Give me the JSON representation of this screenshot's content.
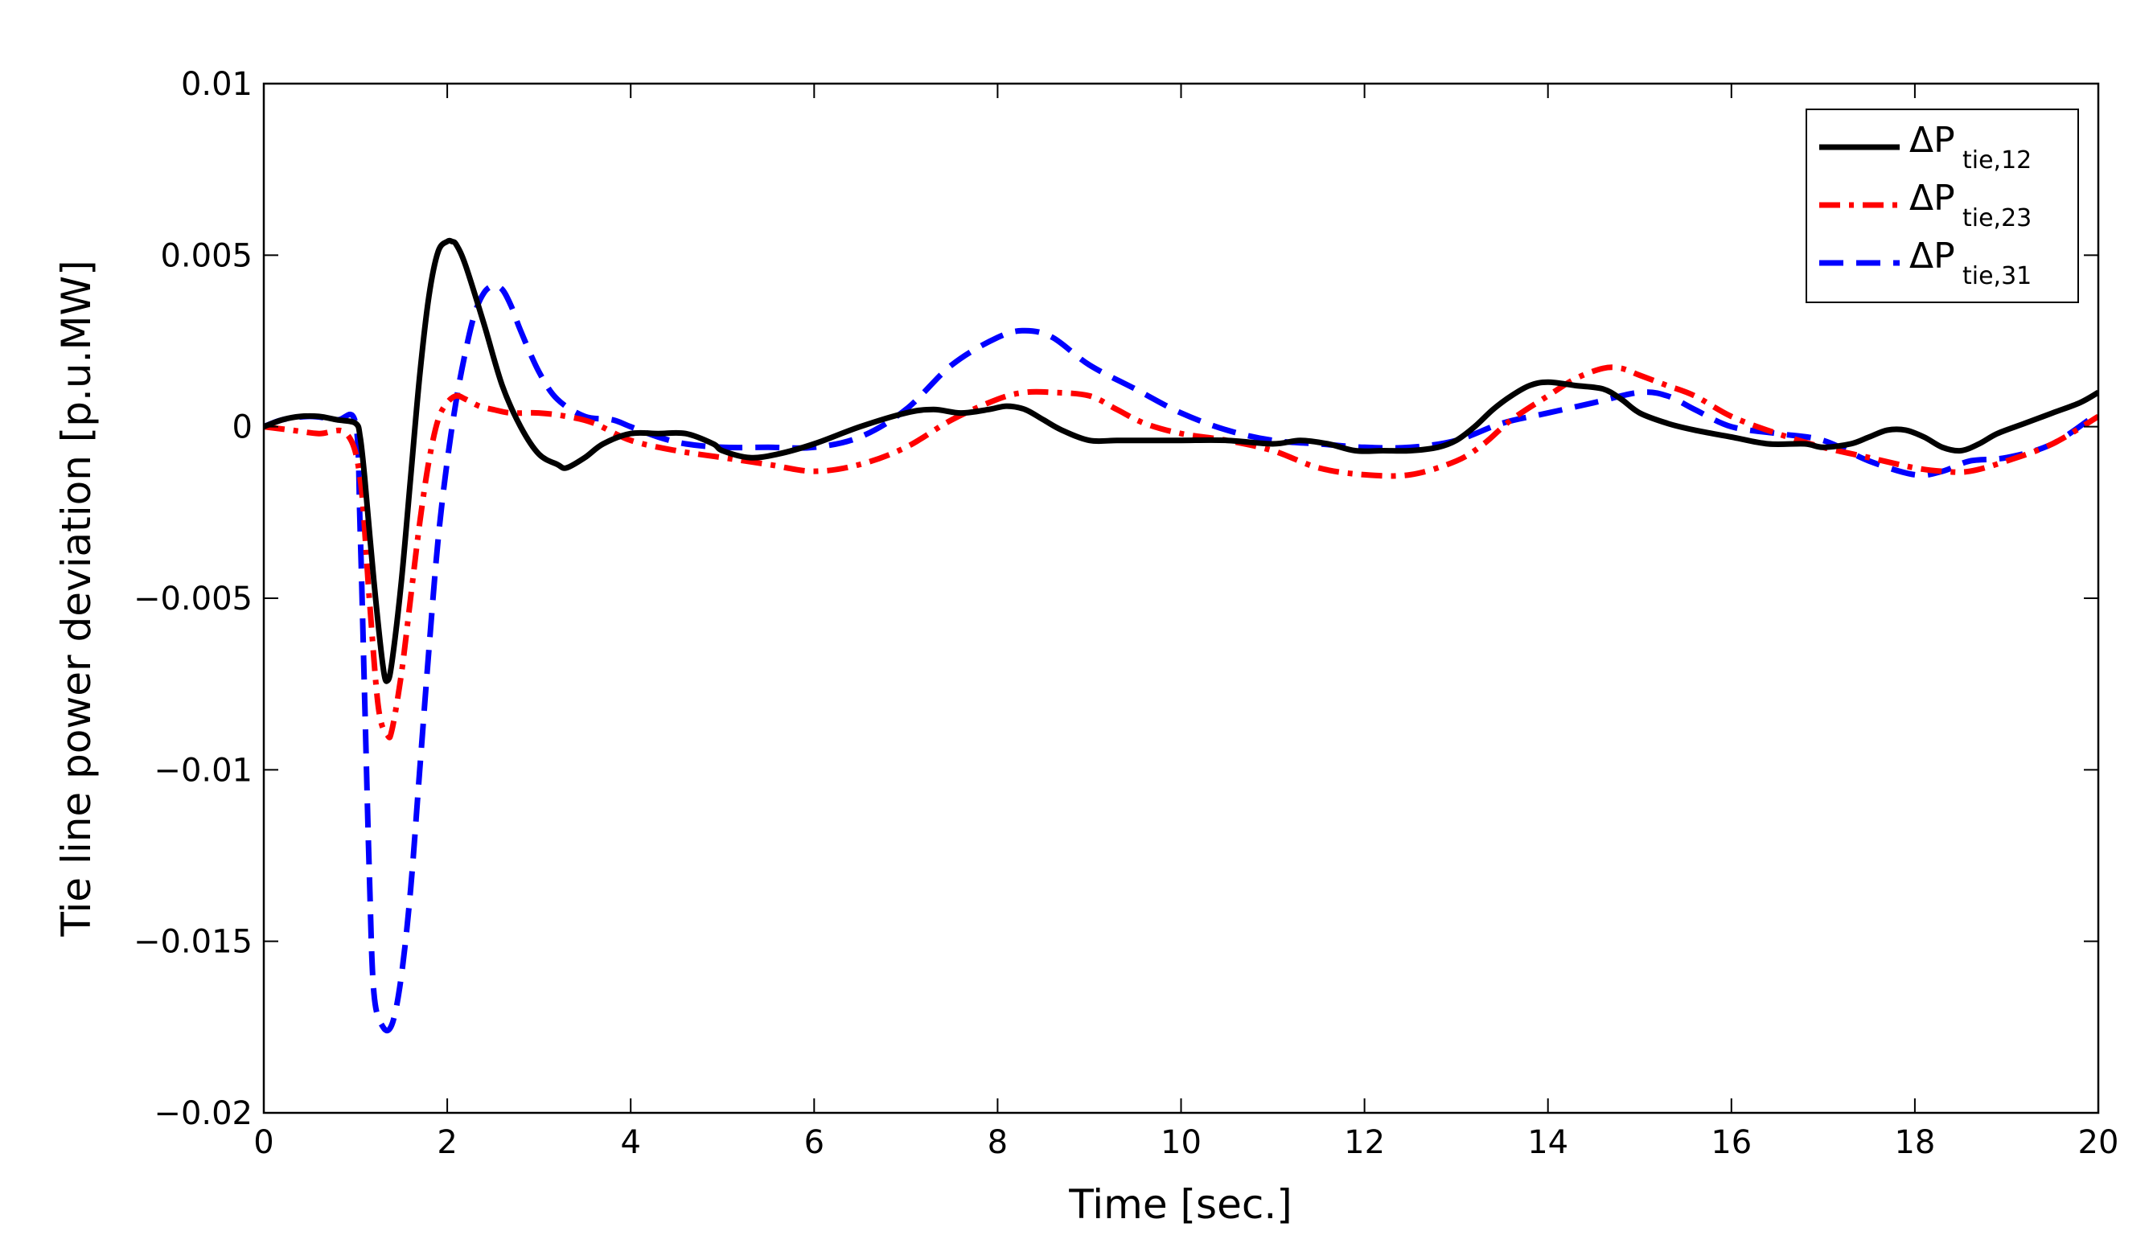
{
  "chart_data": {
    "type": "line",
    "title": "",
    "xlabel": "Time [sec.]",
    "ylabel": "Tie line power deviation [p.u.MW]",
    "xlim": [
      0,
      20
    ],
    "ylim": [
      -0.02,
      0.01
    ],
    "xticks": [
      0,
      2,
      4,
      6,
      8,
      10,
      12,
      14,
      16,
      18,
      20
    ],
    "xtick_labels": [
      "0",
      "2",
      "4",
      "6",
      "8",
      "10",
      "12",
      "14",
      "16",
      "18",
      "20"
    ],
    "yticks": [
      0.01,
      0.005,
      0,
      -0.005,
      -0.01,
      -0.015,
      -0.02
    ],
    "ytick_labels": [
      "0.01",
      "0.005",
      "0",
      "−0.005",
      "−0.01",
      "−0.015",
      "−0.02"
    ],
    "grid": false,
    "legend_position": "top-right",
    "series": [
      {
        "name": "ΔP_tie,12",
        "legend_main": "ΔP",
        "legend_sub": "tie,12",
        "color": "#000000",
        "style": "solid",
        "x": [
          0,
          0.2,
          0.4,
          0.6,
          0.8,
          1.0,
          1.05,
          1.1,
          1.2,
          1.3,
          1.35,
          1.4,
          1.5,
          1.6,
          1.7,
          1.8,
          1.9,
          2.0,
          2.05,
          2.1,
          2.2,
          2.4,
          2.6,
          2.8,
          3.0,
          3.2,
          3.3,
          3.5,
          3.7,
          4.0,
          4.3,
          4.6,
          4.9,
          5.0,
          5.3,
          5.6,
          6.0,
          6.5,
          7.0,
          7.3,
          7.6,
          7.9,
          8.1,
          8.3,
          8.5,
          8.7,
          9.0,
          9.3,
          9.6,
          10.0,
          10.5,
          11.0,
          11.3,
          11.6,
          11.9,
          12.2,
          12.5,
          12.8,
          13.0,
          13.2,
          13.4,
          13.6,
          13.8,
          14.0,
          14.3,
          14.6,
          14.8,
          15.0,
          15.3,
          15.6,
          16.0,
          16.4,
          16.8,
          17.0,
          17.3,
          17.5,
          17.7,
          17.9,
          18.1,
          18.3,
          18.5,
          18.7,
          18.9,
          19.2,
          19.5,
          19.8,
          20.0
        ],
        "y": [
          0,
          0.0002,
          0.0003,
          0.0003,
          0.0002,
          0.0001,
          -0.0003,
          -0.0015,
          -0.0045,
          -0.007,
          -0.0074,
          -0.0068,
          -0.0045,
          -0.0015,
          0.0015,
          0.0038,
          0.0051,
          0.0054,
          0.0054,
          0.0053,
          0.0047,
          0.003,
          0.0012,
          0.0,
          -0.0008,
          -0.0011,
          -0.0012,
          -0.0009,
          -0.0005,
          -0.0002,
          -0.0002,
          -0.0002,
          -0.0005,
          -0.0007,
          -0.0009,
          -0.0008,
          -0.0005,
          0.0,
          0.0004,
          0.0005,
          0.0004,
          0.0005,
          0.0006,
          0.0005,
          0.0002,
          -0.0001,
          -0.0004,
          -0.0004,
          -0.0004,
          -0.0004,
          -0.0004,
          -0.0005,
          -0.0004,
          -0.0005,
          -0.0007,
          -0.0007,
          -0.0007,
          -0.0006,
          -0.0004,
          0.0,
          0.0005,
          0.0009,
          0.0012,
          0.0013,
          0.0012,
          0.0011,
          0.0008,
          0.0004,
          0.0001,
          -0.0001,
          -0.0003,
          -0.0005,
          -0.0005,
          -0.0006,
          -0.0005,
          -0.0003,
          -0.0001,
          -0.0001,
          -0.0003,
          -0.0006,
          -0.0007,
          -0.0005,
          -0.0002,
          0.0001,
          0.0004,
          0.0007,
          0.001
        ]
      },
      {
        "name": "ΔP_tie,23",
        "legend_main": "ΔP",
        "legend_sub": "tie,23",
        "color": "#ff0000",
        "style": "dashdot",
        "x": [
          0,
          0.3,
          0.6,
          0.9,
          1.05,
          1.15,
          1.25,
          1.35,
          1.4,
          1.5,
          1.6,
          1.7,
          1.8,
          1.9,
          2.0,
          2.1,
          2.2,
          2.35,
          2.5,
          2.7,
          3.0,
          3.3,
          3.6,
          4.0,
          4.5,
          5.0,
          5.5,
          6.0,
          6.5,
          7.0,
          7.5,
          8.0,
          8.3,
          8.6,
          9.0,
          9.3,
          9.6,
          10.0,
          10.5,
          11.0,
          11.5,
          12.0,
          12.5,
          13.0,
          13.3,
          13.6,
          14.0,
          14.3,
          14.6,
          14.8,
          15.0,
          15.3,
          15.6,
          16.0,
          16.5,
          17.0,
          17.5,
          18.0,
          18.3,
          18.6,
          19.0,
          19.5,
          20.0
        ],
        "y": [
          0,
          -0.0001,
          -0.0002,
          -0.0002,
          -0.0015,
          -0.005,
          -0.0082,
          -0.009,
          -0.0088,
          -0.0072,
          -0.005,
          -0.0028,
          -0.001,
          0.0002,
          0.0007,
          0.0009,
          0.0008,
          0.0006,
          0.0005,
          0.0004,
          0.0004,
          0.0003,
          0.0001,
          -0.0004,
          -0.0007,
          -0.0009,
          -0.0011,
          -0.0013,
          -0.0011,
          -0.0006,
          0.0002,
          0.0008,
          0.001,
          0.001,
          0.0009,
          0.0005,
          0.0001,
          -0.0002,
          -0.0004,
          -0.0007,
          -0.0012,
          -0.0014,
          -0.0014,
          -0.001,
          -0.0005,
          0.0002,
          0.0009,
          0.0014,
          0.0017,
          0.0017,
          0.0015,
          0.0012,
          0.0009,
          0.0003,
          -0.0002,
          -0.0006,
          -0.0009,
          -0.0012,
          -0.0013,
          -0.0013,
          -0.001,
          -0.0005,
          0.0003
        ]
      },
      {
        "name": "ΔP_tie,31",
        "legend_main": "ΔP",
        "legend_sub": "tie,31",
        "color": "#0000ff",
        "style": "dashed",
        "x": [
          0,
          0.2,
          0.5,
          0.8,
          1.0,
          1.05,
          1.1,
          1.15,
          1.2,
          1.3,
          1.4,
          1.5,
          1.6,
          1.7,
          1.8,
          1.9,
          2.0,
          2.1,
          2.2,
          2.3,
          2.4,
          2.5,
          2.6,
          2.7,
          2.8,
          3.0,
          3.2,
          3.5,
          3.8,
          4.0,
          4.3,
          4.6,
          5.0,
          5.5,
          6.0,
          6.5,
          7.0,
          7.5,
          8.0,
          8.3,
          8.6,
          9.0,
          9.5,
          10.0,
          10.5,
          11.0,
          11.5,
          12.0,
          12.5,
          13.0,
          13.5,
          14.0,
          14.5,
          15.0,
          15.3,
          15.6,
          16.0,
          16.5,
          17.0,
          17.5,
          18.0,
          18.3,
          18.6,
          19.0,
          19.5,
          20.0
        ],
        "y": [
          0,
          0.0002,
          0.0003,
          0.0002,
          0.0001,
          -0.003,
          -0.008,
          -0.013,
          -0.0165,
          -0.0175,
          -0.0174,
          -0.016,
          -0.0135,
          -0.01,
          -0.0065,
          -0.0033,
          -0.001,
          0.0008,
          0.0022,
          0.0033,
          0.0039,
          0.0041,
          0.004,
          0.0035,
          0.0028,
          0.0016,
          0.0008,
          0.0003,
          0.0002,
          0.0,
          -0.0003,
          -0.0005,
          -0.0006,
          -0.0006,
          -0.0006,
          -0.0003,
          0.0005,
          0.0018,
          0.0026,
          0.0028,
          0.0026,
          0.0018,
          0.0011,
          0.0004,
          -0.0001,
          -0.0004,
          -0.0005,
          -0.0006,
          -0.0006,
          -0.0004,
          0.0001,
          0.0004,
          0.0007,
          0.001,
          0.0009,
          0.0005,
          0.0,
          -0.0002,
          -0.0004,
          -0.001,
          -0.0014,
          -0.0013,
          -0.001,
          -0.0009,
          -0.0005,
          0.0004
        ]
      }
    ]
  }
}
